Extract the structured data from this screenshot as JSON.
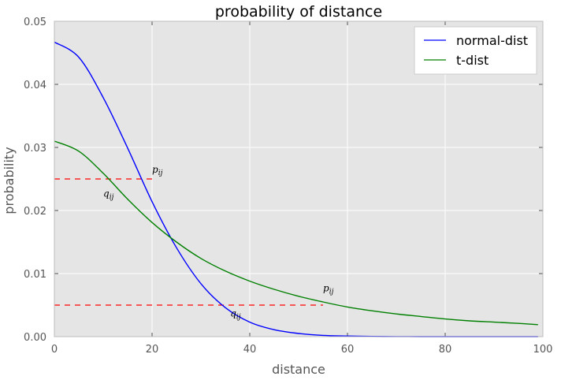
{
  "chart_data": {
    "type": "line",
    "title": "probability of distance",
    "xlabel": "distance",
    "ylabel": "probability",
    "xlim": [
      0,
      100
    ],
    "ylim": [
      0,
      0.05
    ],
    "xticks": [
      0,
      20,
      40,
      60,
      80,
      100
    ],
    "xtick_labels": [
      "0",
      "20",
      "40",
      "60",
      "80",
      "100"
    ],
    "yticks": [
      0,
      0.01,
      0.02,
      0.03,
      0.04,
      0.05
    ],
    "ytick_labels": [
      "0.00",
      "0.01",
      "0.02",
      "0.03",
      "0.04",
      "0.05"
    ],
    "grid": true,
    "legend_position": "top-right",
    "series": [
      {
        "name": "normal-dist",
        "color": "#0000ff",
        "x": [
          0,
          5,
          10,
          15,
          20,
          25,
          30,
          35,
          40,
          45,
          50,
          55,
          60,
          65,
          70,
          75,
          80,
          85,
          90,
          95,
          99
        ],
        "y": [
          0.0467,
          0.0443,
          0.0379,
          0.0299,
          0.0214,
          0.0141,
          0.0084,
          0.0046,
          0.0023,
          0.0011,
          0.0005,
          0.0002,
          0.0001,
          3e-05,
          1e-05,
          0,
          0,
          0,
          0,
          0,
          0
        ]
      },
      {
        "name": "t-dist",
        "color": "#008000",
        "x": [
          0,
          5,
          10,
          15,
          20,
          25,
          30,
          35,
          40,
          45,
          50,
          55,
          60,
          65,
          70,
          75,
          80,
          85,
          90,
          95,
          99
        ],
        "y": [
          0.031,
          0.0294,
          0.0259,
          0.0218,
          0.0181,
          0.015,
          0.0124,
          0.0104,
          0.0088,
          0.0075,
          0.0064,
          0.0055,
          0.0047,
          0.0041,
          0.0036,
          0.0032,
          0.0028,
          0.0025,
          0.0023,
          0.0021,
          0.0019
        ]
      }
    ],
    "reference_lines": [
      {
        "color": "#ff0000",
        "style": "dashed",
        "y": 0.025,
        "x_start": 0,
        "x_end": 20
      },
      {
        "color": "#ff0000",
        "style": "dashed",
        "y": 0.005,
        "x_start": 0,
        "x_end": 55
      }
    ],
    "annotations": [
      {
        "base": "p",
        "sub": "ij",
        "x": 20,
        "y": 0.026
      },
      {
        "base": "q",
        "sub": "ij",
        "x": 10,
        "y": 0.0222
      },
      {
        "base": "p",
        "sub": "ij",
        "x": 55,
        "y": 0.0072
      },
      {
        "base": "q",
        "sub": "ij",
        "x": 36,
        "y": 0.0032
      }
    ]
  }
}
